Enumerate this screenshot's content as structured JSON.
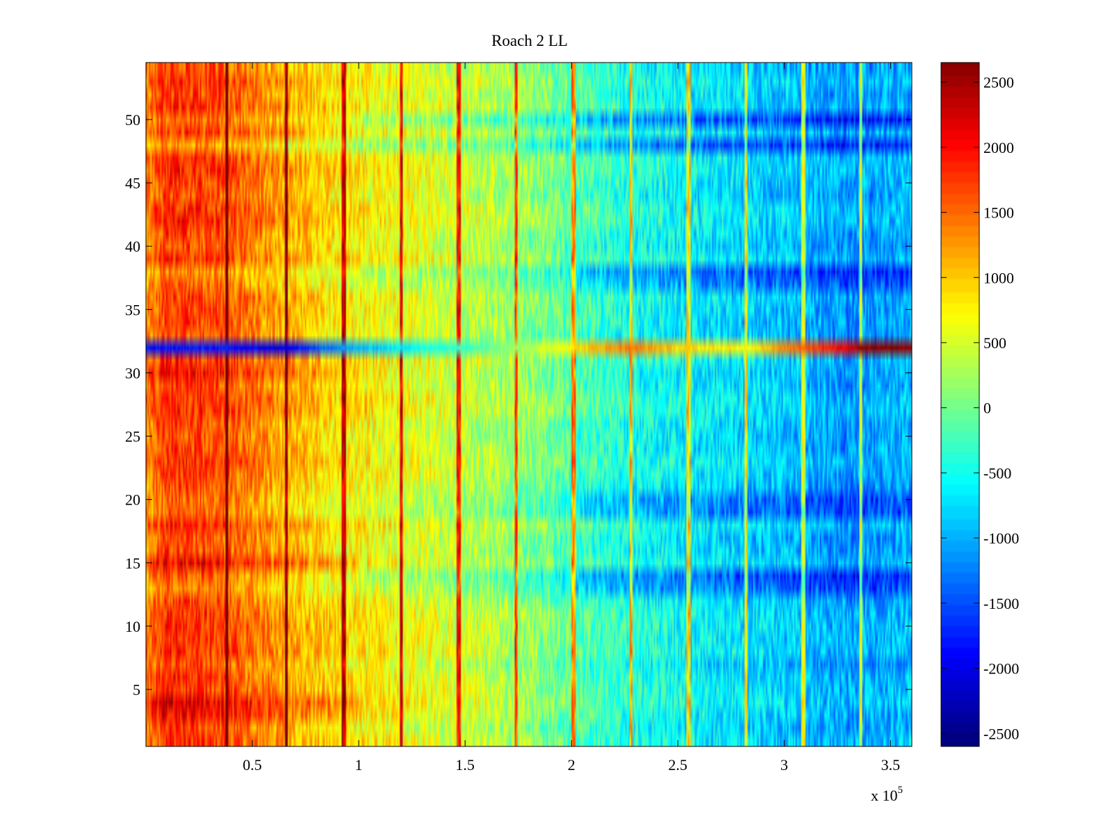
{
  "chart_data": {
    "type": "heatmap",
    "title": "Roach 2 LL",
    "xlabel": "",
    "ylabel": "",
    "x_multiplier_label": "x 10",
    "x_multiplier_exponent": "5",
    "xlim": [
      0,
      3.6
    ],
    "ylim": [
      0.5,
      54.5
    ],
    "xticks": [
      0.5,
      1,
      1.5,
      2,
      2.5,
      3,
      3.5
    ],
    "xtick_labels": [
      "0.5",
      "1",
      "1.5",
      "2",
      "2.5",
      "3",
      "3.5"
    ],
    "yticks": [
      5,
      10,
      15,
      20,
      25,
      30,
      35,
      40,
      45,
      50
    ],
    "ytick_labels": [
      "5",
      "10",
      "15",
      "20",
      "25",
      "30",
      "35",
      "40",
      "45",
      "50"
    ],
    "rows": 54,
    "colormap": "jet",
    "clim": [
      -2600,
      2650
    ],
    "colorbar_ticks": [
      2500,
      2000,
      1500,
      1000,
      500,
      0,
      -500,
      -1000,
      -1500,
      -2000,
      -2500
    ],
    "colorbar_tick_labels": [
      "2500",
      "2000",
      "1500",
      "1000",
      "500",
      "0",
      "-500",
      "-1000",
      "-1500",
      "-2000",
      "-2500"
    ],
    "trend": {
      "x": [
        0,
        0.1,
        0.35,
        0.6,
        0.9,
        1.2,
        1.5,
        1.8,
        2.0,
        2.3,
        2.6,
        3.0,
        3.3,
        3.6
      ],
      "value": [
        1300,
        1750,
        1600,
        1200,
        800,
        600,
        400,
        100,
        -200,
        -500,
        -700,
        -900,
        -1150,
        -1000
      ]
    },
    "vertical_stripes_x": [
      0.38,
      0.66,
      0.93,
      1.2,
      1.47,
      1.74,
      2.01,
      2.28,
      2.55,
      2.82,
      3.09,
      3.36
    ],
    "anomalous_row": {
      "row": 32,
      "x": [
        0,
        0.3,
        0.66,
        0.9,
        1.2,
        1.5,
        1.8,
        2.0,
        2.27,
        2.5,
        2.82,
        3.1,
        3.3,
        3.36,
        3.6
      ],
      "value": [
        -1900,
        -1800,
        -2100,
        -1200,
        -700,
        -300,
        300,
        800,
        1400,
        900,
        700,
        1600,
        2100,
        2600,
        2600
      ]
    },
    "cool_rows": [
      13,
      14,
      19,
      20,
      37,
      38,
      48,
      50
    ],
    "warm_rows": [
      3,
      4,
      14,
      15,
      30,
      50
    ]
  }
}
